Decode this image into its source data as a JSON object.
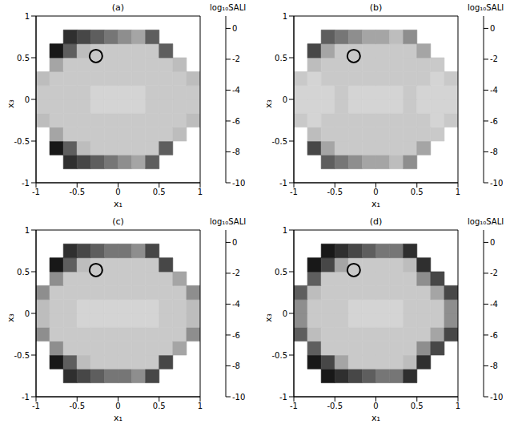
{
  "chart_data": [
    {
      "type": "heatmap",
      "title": "(a)",
      "x_label": "x₁",
      "y_label": "x₃",
      "xlim": [
        -1,
        1
      ],
      "ylim": [
        -1,
        1
      ],
      "xticks": [
        -1,
        -0.5,
        0,
        0.5,
        1
      ],
      "yticks": [
        -1,
        -0.5,
        0,
        0.5,
        1
      ],
      "color": "gray",
      "x": [
        -0.917,
        -0.75,
        -0.583,
        -0.417,
        -0.25,
        -0.083,
        0.083,
        0.25,
        0.417,
        0.583,
        0.75,
        0.917
      ],
      "y": [
        -0.917,
        -0.75,
        -0.583,
        -0.417,
        -0.25,
        -0.083,
        0.083,
        0.25,
        0.417,
        0.583,
        0.75,
        0.917
      ],
      "cells": [
        [
          null,
          null,
          null,
          null,
          null,
          null,
          null,
          null,
          null,
          null,
          null,
          null
        ],
        [
          null,
          null,
          -8,
          -7,
          -6,
          -5,
          -4,
          -3,
          -6,
          null,
          null,
          null
        ],
        [
          null,
          -9,
          -6,
          -2,
          -1.5,
          -1.5,
          -1.5,
          -1.5,
          -1.5,
          -6,
          null,
          null
        ],
        [
          null,
          -3,
          -1.5,
          -1.5,
          -1.5,
          -1.5,
          -1.5,
          -1.5,
          -1.5,
          -1.5,
          -2,
          null
        ],
        [
          -2,
          -1.5,
          -1.5,
          -1.5,
          -1.5,
          -1.5,
          -1.5,
          -1.5,
          -1.5,
          -1.5,
          -1.5,
          -2
        ],
        [
          -1.5,
          -1.5,
          -1.5,
          -1.5,
          -1,
          -1,
          -1,
          -1,
          -1.5,
          -1.5,
          -1.5,
          -1.5
        ],
        [
          -1.5,
          -1.5,
          -1.5,
          -1.5,
          -1,
          -1,
          -1,
          -1,
          -1.5,
          -1.5,
          -1.5,
          -1.5
        ],
        [
          -2,
          -1.5,
          -1.5,
          -1.5,
          -1.5,
          -1.5,
          -1.5,
          -1.5,
          -1.5,
          -1.5,
          -1.5,
          -2
        ],
        [
          null,
          -3,
          -1.5,
          -1.5,
          -1.5,
          -1.5,
          -1.5,
          -1.5,
          -1.5,
          -1.5,
          -2,
          null
        ],
        [
          null,
          -9,
          -6,
          -2,
          -1.5,
          -1.5,
          -1.5,
          -1.5,
          -1.5,
          -6,
          null,
          null
        ],
        [
          null,
          null,
          -8,
          -7,
          -6,
          -5,
          -4,
          -3,
          -6,
          null,
          null,
          null
        ],
        [
          null,
          null,
          null,
          null,
          null,
          null,
          null,
          null,
          null,
          null,
          null,
          null
        ]
      ],
      "colorbar": {
        "label": "log₁₀SALI",
        "range": [
          -10,
          0.8
        ],
        "ticks": [
          0,
          -2,
          -4,
          -6,
          -8,
          -10
        ]
      },
      "circle": {
        "x": -0.27,
        "y": 0.52
      }
    },
    {
      "type": "heatmap",
      "title": "(b)",
      "x_label": "x₁",
      "y_label": "x₃",
      "xlim": [
        -1,
        1
      ],
      "ylim": [
        -1,
        1
      ],
      "xticks": [
        -1,
        -0.5,
        0,
        0.5,
        1
      ],
      "yticks": [
        -1,
        -0.5,
        0,
        0.5,
        1
      ],
      "color": "gray",
      "x": [
        -0.917,
        -0.75,
        -0.583,
        -0.417,
        -0.25,
        -0.083,
        0.083,
        0.25,
        0.417,
        0.583,
        0.75,
        0.917
      ],
      "y": [
        -0.917,
        -0.75,
        -0.583,
        -0.417,
        -0.25,
        -0.083,
        0.083,
        0.25,
        0.417,
        0.583,
        0.75,
        0.917
      ],
      "cells": [
        [
          null,
          null,
          null,
          null,
          null,
          null,
          null,
          null,
          null,
          null,
          null,
          null
        ],
        [
          null,
          null,
          -6,
          -5,
          -4,
          -3,
          -3,
          -2,
          -4,
          null,
          null,
          null
        ],
        [
          null,
          -7,
          -3,
          -1.5,
          -1.5,
          -1.5,
          -1.5,
          -1.5,
          -1.5,
          -3,
          null,
          null
        ],
        [
          null,
          -2,
          -1.5,
          -1.5,
          -1.5,
          -1.5,
          -1.5,
          -1.5,
          -1.5,
          -1.5,
          -1.5,
          null
        ],
        [
          -1.5,
          -1,
          -1.5,
          -1.5,
          -1.5,
          -1.5,
          -1.5,
          -1.5,
          -1.5,
          -1.5,
          -1,
          -1.5
        ],
        [
          -1,
          -1,
          -1,
          -1.5,
          -1,
          -1,
          -1,
          -1,
          -1.5,
          -1,
          -1,
          -1
        ],
        [
          -1,
          -1,
          -1,
          -1.5,
          -1,
          -1,
          -1,
          -1,
          -1.5,
          -1,
          -1,
          -1
        ],
        [
          -1.5,
          -1,
          -1.5,
          -1.5,
          -1.5,
          -1.5,
          -1.5,
          -1.5,
          -1.5,
          -1.5,
          -1,
          -1.5
        ],
        [
          null,
          -2,
          -1.5,
          -1.5,
          -1.5,
          -1.5,
          -1.5,
          -1.5,
          -1.5,
          -1.5,
          -1.5,
          null
        ],
        [
          null,
          -7,
          -3,
          -1.5,
          -1.5,
          -1.5,
          -1.5,
          -1.5,
          -1.5,
          -3,
          null,
          null
        ],
        [
          null,
          null,
          -6,
          -5,
          -4,
          -3,
          -3,
          -2,
          -4,
          null,
          null,
          null
        ],
        [
          null,
          null,
          null,
          null,
          null,
          null,
          null,
          null,
          null,
          null,
          null,
          null
        ]
      ],
      "colorbar": {
        "label": "log₁₀SALI",
        "range": [
          -10,
          0.8
        ],
        "ticks": [
          0,
          -2,
          -4,
          -6,
          -8,
          -10
        ]
      },
      "circle": {
        "x": -0.27,
        "y": 0.52
      }
    },
    {
      "type": "heatmap",
      "title": "(c)",
      "x_label": "x₁",
      "y_label": "x₃",
      "xlim": [
        -1,
        1
      ],
      "ylim": [
        -1,
        1
      ],
      "xticks": [
        -1,
        -0.5,
        0,
        0.5,
        1
      ],
      "yticks": [
        -1,
        -0.5,
        0,
        0.5,
        1
      ],
      "color": "gray",
      "x": [
        -0.917,
        -0.75,
        -0.583,
        -0.417,
        -0.25,
        -0.083,
        0.083,
        0.25,
        0.417,
        0.583,
        0.75,
        0.917
      ],
      "y": [
        -0.917,
        -0.75,
        -0.583,
        -0.417,
        -0.25,
        -0.083,
        0.083,
        0.25,
        0.417,
        0.583,
        0.75,
        0.917
      ],
      "cells": [
        [
          null,
          null,
          null,
          null,
          null,
          null,
          null,
          null,
          null,
          null,
          null,
          null
        ],
        [
          null,
          null,
          -8,
          -7,
          -6,
          -5,
          -5,
          -4,
          -7,
          null,
          null,
          null
        ],
        [
          null,
          -9,
          -6,
          -2,
          -1.5,
          -1.5,
          -1.5,
          -1.5,
          -1.5,
          -7,
          null,
          null
        ],
        [
          null,
          -4,
          -1.5,
          -1.5,
          -1.5,
          -1.5,
          -1.5,
          -1.5,
          -1.5,
          -1.5,
          -3,
          null
        ],
        [
          -4,
          -1.5,
          -1.5,
          -1.5,
          -1.5,
          -1.5,
          -1.5,
          -1.5,
          -1.5,
          -1.5,
          -1.5,
          -4
        ],
        [
          -2,
          -1.5,
          -1.5,
          -1,
          -1,
          -1,
          -1,
          -1,
          -1,
          -1.5,
          -1.5,
          -2
        ],
        [
          -2,
          -1.5,
          -1.5,
          -1,
          -1,
          -1,
          -1,
          -1,
          -1,
          -1.5,
          -1.5,
          -2
        ],
        [
          -4,
          -1.5,
          -1.5,
          -1.5,
          -1.5,
          -1.5,
          -1.5,
          -1.5,
          -1.5,
          -1.5,
          -1.5,
          -4
        ],
        [
          null,
          -4,
          -1.5,
          -1.5,
          -1.5,
          -1.5,
          -1.5,
          -1.5,
          -1.5,
          -1.5,
          -3,
          null
        ],
        [
          null,
          -9,
          -6,
          -2,
          -1.5,
          -1.5,
          -1.5,
          -1.5,
          -1.5,
          -7,
          null,
          null
        ],
        [
          null,
          null,
          -8,
          -7,
          -6,
          -5,
          -5,
          -4,
          -7,
          null,
          null,
          null
        ],
        [
          null,
          null,
          null,
          null,
          null,
          null,
          null,
          null,
          null,
          null,
          null,
          null
        ]
      ],
      "colorbar": {
        "label": "log₁₀SALI",
        "range": [
          -10,
          0.8
        ],
        "ticks": [
          0,
          -2,
          -4,
          -6,
          -8,
          -10
        ]
      },
      "circle": {
        "x": -0.27,
        "y": 0.52
      }
    },
    {
      "type": "heatmap",
      "title": "(d)",
      "x_label": "x₁",
      "y_label": "x₃",
      "xlim": [
        -1,
        1
      ],
      "ylim": [
        -1,
        1
      ],
      "xticks": [
        -1,
        -0.5,
        0,
        0.5,
        1
      ],
      "yticks": [
        -1,
        -0.5,
        0,
        0.5,
        1
      ],
      "color": "gray",
      "x": [
        -0.917,
        -0.75,
        -0.583,
        -0.417,
        -0.25,
        -0.083,
        0.083,
        0.25,
        0.417,
        0.583,
        0.75,
        0.917
      ],
      "y": [
        -0.917,
        -0.75,
        -0.583,
        -0.417,
        -0.25,
        -0.083,
        0.083,
        0.25,
        0.417,
        0.583,
        0.75,
        0.917
      ],
      "cells": [
        [
          null,
          null,
          null,
          null,
          null,
          null,
          null,
          null,
          null,
          null,
          null,
          null
        ],
        [
          null,
          null,
          -9,
          -8,
          -7,
          -6,
          -5,
          -5,
          -8,
          null,
          null,
          null
        ],
        [
          null,
          -9,
          -7,
          -3,
          -1.5,
          -1.5,
          -1.5,
          -1.5,
          -2,
          -8,
          null,
          null
        ],
        [
          null,
          -6,
          -1.5,
          -1.5,
          -1.5,
          -1.5,
          -1.5,
          -1.5,
          -1.5,
          -4,
          -7,
          null
        ],
        [
          -6,
          -2,
          -1.5,
          -1.5,
          -1.5,
          -1.5,
          -1.5,
          -1.5,
          -1.5,
          -1.5,
          -3,
          -7
        ],
        [
          -4,
          -1.5,
          -1.5,
          -1.5,
          -1,
          -1,
          -1,
          -1,
          -1.5,
          -1.5,
          -1.5,
          -4
        ],
        [
          -4,
          -1.5,
          -1.5,
          -1.5,
          -1,
          -1,
          -1,
          -1,
          -1.5,
          -1.5,
          -1.5,
          -4
        ],
        [
          -6,
          -2,
          -1.5,
          -1.5,
          -1.5,
          -1.5,
          -1.5,
          -1.5,
          -1.5,
          -1.5,
          -3,
          -7
        ],
        [
          null,
          -6,
          -1.5,
          -1.5,
          -1.5,
          -1.5,
          -1.5,
          -1.5,
          -1.5,
          -4,
          -7,
          null
        ],
        [
          null,
          -9,
          -7,
          -3,
          -1.5,
          -1.5,
          -1.5,
          -1.5,
          -2,
          -8,
          null,
          null
        ],
        [
          null,
          null,
          -9,
          -8,
          -7,
          -6,
          -5,
          -5,
          -8,
          null,
          null,
          null
        ],
        [
          null,
          null,
          null,
          null,
          null,
          null,
          null,
          null,
          null,
          null,
          null,
          null
        ]
      ],
      "colorbar": {
        "label": "log₁₀SALI",
        "range": [
          -10,
          0.8
        ],
        "ticks": [
          0,
          -2,
          -4,
          -6,
          -8,
          -10
        ]
      },
      "circle": {
        "x": -0.27,
        "y": 0.52
      }
    }
  ]
}
